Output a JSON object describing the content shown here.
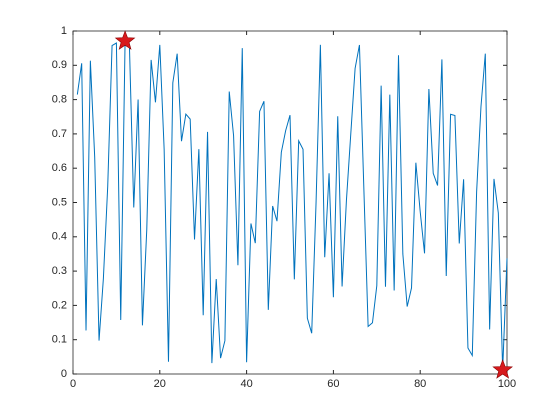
{
  "chart_data": {
    "type": "line",
    "x": [
      1,
      2,
      3,
      4,
      5,
      6,
      7,
      8,
      9,
      10,
      11,
      12,
      13,
      14,
      15,
      16,
      17,
      18,
      19,
      20,
      21,
      22,
      23,
      24,
      25,
      26,
      27,
      28,
      29,
      30,
      31,
      32,
      33,
      34,
      35,
      36,
      37,
      38,
      39,
      40,
      41,
      42,
      43,
      44,
      45,
      46,
      47,
      48,
      49,
      50,
      51,
      52,
      53,
      54,
      55,
      56,
      57,
      58,
      59,
      60,
      61,
      62,
      63,
      64,
      65,
      66,
      67,
      68,
      69,
      70,
      71,
      72,
      73,
      74,
      75,
      76,
      77,
      78,
      79,
      80,
      81,
      82,
      83,
      84,
      85,
      86,
      87,
      88,
      89,
      90,
      91,
      92,
      93,
      94,
      95,
      96,
      97,
      98,
      99,
      100
    ],
    "series": [
      {
        "color": "#0072bd",
        "values": [
          0.8147,
          0.9058,
          0.127,
          0.9134,
          0.6324,
          0.0975,
          0.2785,
          0.5469,
          0.9575,
          0.9649,
          0.1576,
          0.9706,
          0.9572,
          0.4854,
          0.8003,
          0.1419,
          0.4218,
          0.9157,
          0.7922,
          0.9595,
          0.6557,
          0.0357,
          0.8491,
          0.934,
          0.6787,
          0.7577,
          0.7431,
          0.3922,
          0.6555,
          0.1712,
          0.706,
          0.0318,
          0.2769,
          0.0462,
          0.0971,
          0.8235,
          0.6948,
          0.3171,
          0.9502,
          0.0344,
          0.4387,
          0.3816,
          0.7655,
          0.7952,
          0.1869,
          0.4898,
          0.4456,
          0.6463,
          0.7094,
          0.7547,
          0.276,
          0.6797,
          0.6551,
          0.1626,
          0.119,
          0.4984,
          0.9597,
          0.3404,
          0.5853,
          0.2238,
          0.7513,
          0.2551,
          0.506,
          0.6991,
          0.8909,
          0.9593,
          0.5472,
          0.1386,
          0.1493,
          0.2575,
          0.8407,
          0.2543,
          0.8143,
          0.2435,
          0.9293,
          0.35,
          0.1966,
          0.2511,
          0.616,
          0.4733,
          0.3517,
          0.8308,
          0.5853,
          0.5497,
          0.9172,
          0.2858,
          0.7572,
          0.7537,
          0.3804,
          0.5678,
          0.0759,
          0.054,
          0.5308,
          0.7792,
          0.934,
          0.1299,
          0.5688,
          0.4694,
          0.0119,
          0.3371
        ]
      }
    ],
    "markers": {
      "x": [
        12,
        99
      ],
      "values": [
        0.9706,
        0.0119
      ],
      "color": "#d7191c"
    },
    "xlim": [
      0,
      100
    ],
    "ylim": [
      0,
      1
    ],
    "xticks": [
      0,
      20,
      40,
      60,
      80,
      100
    ],
    "yticks": [
      0,
      0.1,
      0.2,
      0.3,
      0.4,
      0.5,
      0.6,
      0.7,
      0.8,
      0.9,
      1
    ]
  }
}
